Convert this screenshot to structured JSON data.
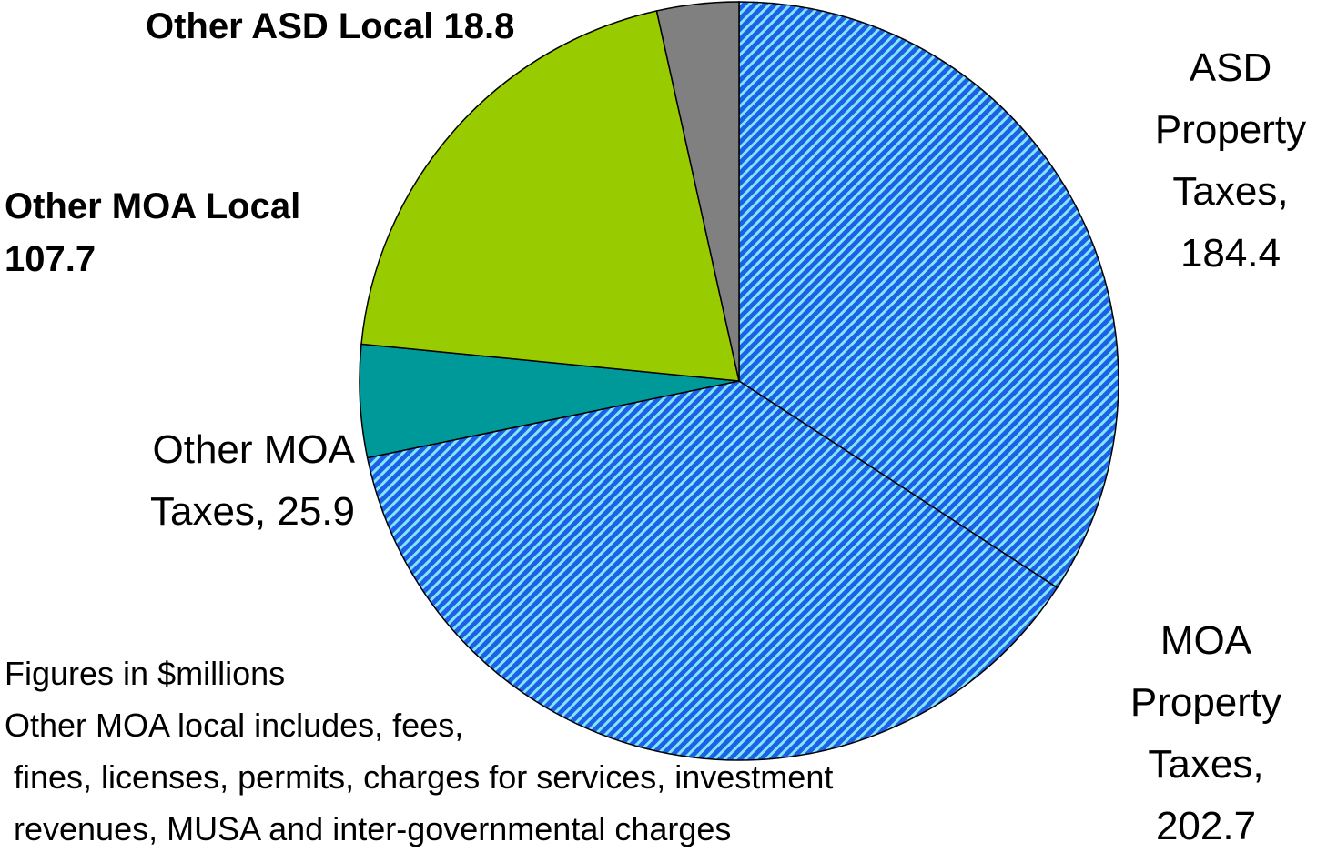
{
  "chart_data": {
    "type": "pie",
    "value_labels": [
      "ASD Property Taxes, 184.4",
      "MOA Property Taxes, 202.7",
      "Other MOA Taxes, 25.9",
      "Other MOA Local 107.7",
      "Other ASD Local 18.8"
    ],
    "values": [
      184.4,
      202.7,
      25.9,
      107.7,
      18.8
    ],
    "colors": [
      "#1f5fe6",
      "#1f5fe6",
      "#009999",
      "#99cc00",
      "#808080"
    ],
    "hatched": [
      true,
      true,
      false,
      false,
      false
    ],
    "bold_labels": [
      false,
      false,
      false,
      true,
      true
    ],
    "notes": [
      "Figures in $millions",
      "Other MOA local includes, fees,",
      " fines, licenses, permits, charges for services, investment",
      " revenues, MUSA and inter-governmental charges"
    ]
  }
}
